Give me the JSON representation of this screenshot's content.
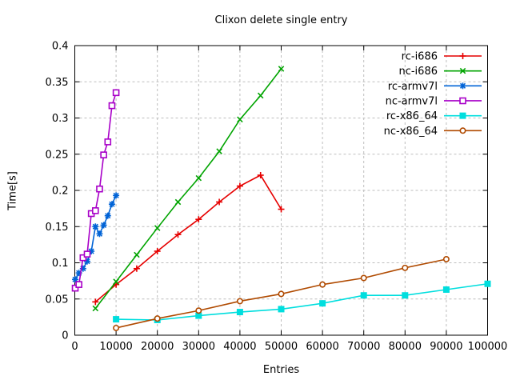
{
  "chart_data": {
    "type": "line",
    "title": "Clixon delete single entry",
    "xlabel": "Entries",
    "ylabel": "Time[s]",
    "xlim": [
      0,
      100000
    ],
    "ylim": [
      0,
      0.4
    ],
    "xticks": [
      0,
      10000,
      20000,
      30000,
      40000,
      50000,
      60000,
      70000,
      80000,
      90000,
      100000
    ],
    "xtick_labels": [
      "0",
      "10000",
      "20000",
      "30000",
      "40000",
      "50000",
      "60000",
      "70000",
      "80000",
      "90000",
      "100000"
    ],
    "yticks": [
      0,
      0.05,
      0.1,
      0.15,
      0.2,
      0.25,
      0.3,
      0.35,
      0.4
    ],
    "ytick_labels": [
      "0",
      "0.05",
      "0.1",
      "0.15",
      "0.2",
      "0.25",
      "0.3",
      "0.35",
      "0.4"
    ],
    "grid": "dashed",
    "grid_color": "#bdbdbd",
    "border_color": "#000000",
    "legend_position": "top-right-inside",
    "series": [
      {
        "name": "rc-i686",
        "color": "#e60000",
        "marker": "plus",
        "x": [
          5000,
          10000,
          15000,
          20000,
          25000,
          30000,
          35000,
          40000,
          45000,
          50000
        ],
        "y": [
          0.046,
          0.07,
          0.092,
          0.116,
          0.139,
          0.16,
          0.184,
          0.206,
          0.221,
          0.174
        ]
      },
      {
        "name": "nc-i686",
        "color": "#00a400",
        "marker": "cross",
        "x": [
          5000,
          10000,
          15000,
          20000,
          25000,
          30000,
          35000,
          40000,
          45000,
          50000
        ],
        "y": [
          0.037,
          0.074,
          0.111,
          0.148,
          0.184,
          0.217,
          0.254,
          0.298,
          0.331,
          0.368
        ]
      },
      {
        "name": "rc-armv7l",
        "color": "#0063d6",
        "marker": "asterisk",
        "x": [
          100,
          1000,
          2000,
          3000,
          4000,
          5000,
          6000,
          7000,
          8000,
          9000,
          10000
        ],
        "y": [
          0.077,
          0.086,
          0.092,
          0.102,
          0.116,
          0.15,
          0.14,
          0.152,
          0.165,
          0.181,
          0.193
        ]
      },
      {
        "name": "nc-armv7l",
        "color": "#a800c8",
        "marker": "open-square",
        "x": [
          100,
          1000,
          2000,
          3000,
          4000,
          5000,
          6000,
          7000,
          8000,
          9000,
          10000
        ],
        "y": [
          0.065,
          0.07,
          0.107,
          0.112,
          0.168,
          0.172,
          0.202,
          0.249,
          0.267,
          0.317,
          0.335
        ]
      },
      {
        "name": "rc-x86_64",
        "color": "#00dede",
        "marker": "filled-square",
        "x": [
          10000,
          20000,
          30000,
          40000,
          50000,
          60000,
          70000,
          80000,
          90000,
          100000
        ],
        "y": [
          0.022,
          0.021,
          0.027,
          0.032,
          0.036,
          0.044,
          0.055,
          0.055,
          0.063,
          0.071
        ]
      },
      {
        "name": "nc-x86_64",
        "color": "#b04a00",
        "marker": "open-circle",
        "x": [
          10000,
          20000,
          30000,
          40000,
          50000,
          60000,
          70000,
          80000,
          90000
        ],
        "y": [
          0.01,
          0.023,
          0.034,
          0.047,
          0.057,
          0.07,
          0.079,
          0.093,
          0.105
        ]
      }
    ]
  }
}
